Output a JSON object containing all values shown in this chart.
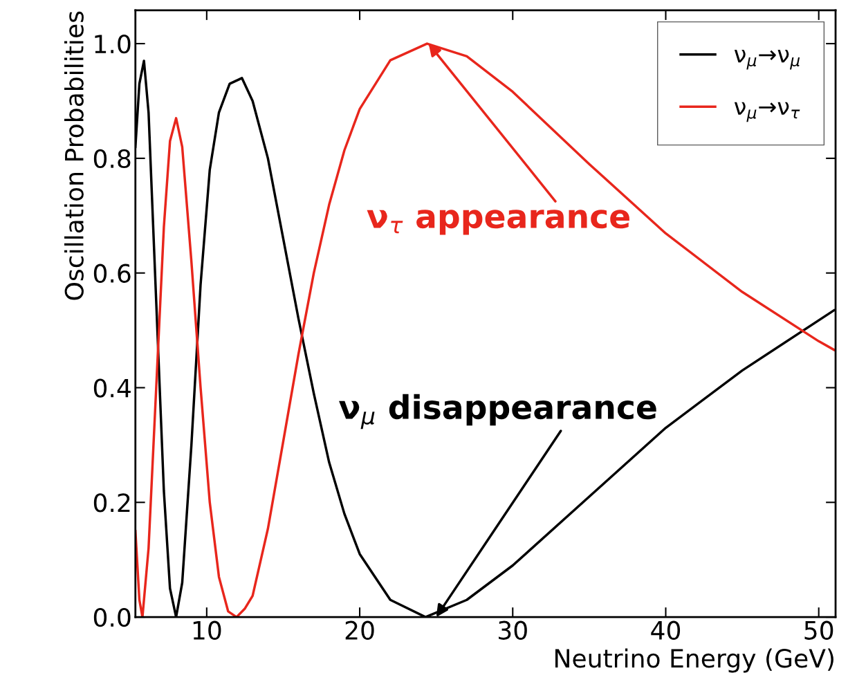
{
  "chart_data": {
    "type": "line",
    "xlabel": "Neutrino Energy (GeV)",
    "ylabel": "Oscillation Probabilities",
    "xlim": [
      5.34,
      51.1
    ],
    "ylim": [
      0,
      1.058
    ],
    "xticks": [
      10,
      20,
      30,
      40,
      50
    ],
    "yticks": [
      {
        "value": 0,
        "label": "0.0"
      },
      {
        "value": 0.2,
        "label": "0.2"
      },
      {
        "value": 0.4,
        "label": "0.4"
      },
      {
        "value": 0.6,
        "label": "0.6"
      },
      {
        "value": 0.8,
        "label": "0.8"
      },
      {
        "value": 1.0,
        "label": "1.0"
      }
    ],
    "grid": false,
    "legend": "top right",
    "marker": "none",
    "line_style": "solid",
    "series": [
      {
        "name": "ν$_{μ}$→ν$_{μ}$",
        "color": "#000000",
        "x": [
          5.34,
          5.6,
          5.9,
          6.2,
          6.7,
          7.2,
          7.6,
          8.0,
          8.4,
          9.0,
          9.6,
          10.2,
          10.8,
          11.5,
          12.3,
          13,
          14,
          15,
          16,
          17,
          18,
          19,
          20,
          22,
          24.3,
          27,
          30,
          35,
          40,
          45,
          51
        ],
        "values": [
          0.82,
          0.93,
          0.97,
          0.88,
          0.55,
          0.22,
          0.05,
          0.0,
          0.06,
          0.3,
          0.58,
          0.78,
          0.88,
          0.93,
          0.94,
          0.9,
          0.8,
          0.66,
          0.52,
          0.39,
          0.27,
          0.18,
          0.11,
          0.03,
          0.0,
          0.03,
          0.09,
          0.21,
          0.33,
          0.43,
          0.535
        ]
      },
      {
        "name": "ν$_{μ}$→ν$_{τ}$",
        "color": "#e8261c",
        "x": [
          5.34,
          5.6,
          5.8,
          6.2,
          6.7,
          7.2,
          7.6,
          8.0,
          8.4,
          9.0,
          9.6,
          10.2,
          10.8,
          11.4,
          11.95,
          12.5,
          13,
          14,
          15,
          16,
          17,
          18,
          19,
          20,
          22,
          24.4,
          27,
          30,
          35,
          40,
          45,
          50,
          51
        ],
        "values": [
          0.15,
          0.03,
          0.0,
          0.12,
          0.4,
          0.68,
          0.83,
          0.87,
          0.82,
          0.62,
          0.4,
          0.2,
          0.07,
          0.01,
          0.0,
          0.015,
          0.037,
          0.154,
          0.306,
          0.459,
          0.6,
          0.719,
          0.814,
          0.886,
          0.971,
          1.0,
          0.978,
          0.916,
          0.79,
          0.669,
          0.567,
          0.481,
          0.466
        ]
      }
    ],
    "annotations": [
      {
        "text": "ν$_{τ}$ appearance",
        "x": 24.5,
        "y": 1.0
      },
      {
        "text": "ν$_{μ}$ disappearance",
        "x": 25.0,
        "y": 0.0
      }
    ]
  }
}
